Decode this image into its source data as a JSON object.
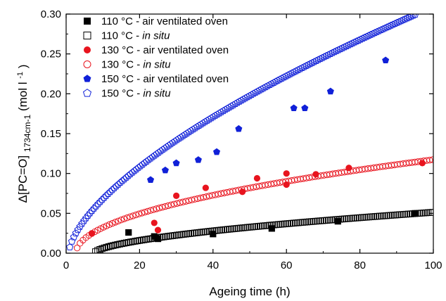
{
  "chart_data": {
    "type": "scatter",
    "title": "",
    "xlabel": "Ageing time (h)",
    "ylabel_parts": {
      "main": "Δ[PC=O]",
      "subscript": "1734cm-1",
      "unit": " (mol l",
      "unit_sup": "-1",
      "unit_end": ")"
    },
    "xlim": [
      0,
      100
    ],
    "ylim": [
      0,
      0.3
    ],
    "x_ticks": [
      0,
      20,
      40,
      60,
      80,
      100
    ],
    "y_ticks": [
      0.0,
      0.05,
      0.1,
      0.15,
      0.2,
      0.25,
      0.3
    ],
    "y_tick_labels": [
      "0.00",
      "0.05",
      "0.10",
      "0.15",
      "0.20",
      "0.25",
      "0.30"
    ],
    "legend_position": "top-left",
    "series": [
      {
        "name": "110 °C - air ventilated oven",
        "label_main": "110 °C - ",
        "label_tail": "air ventilated oven",
        "tail_italic": false,
        "marker": "square",
        "filled": true,
        "color": "#000000",
        "points": [
          [
            17,
            0.026
          ],
          [
            24,
            0.021
          ],
          [
            25,
            0.018
          ],
          [
            40,
            0.024
          ],
          [
            56,
            0.031
          ],
          [
            74,
            0.04
          ],
          [
            95,
            0.05
          ]
        ]
      },
      {
        "name": "110 °C - in situ",
        "label_main": "110 °C - ",
        "label_tail": "in situ",
        "tail_italic": true,
        "marker": "square",
        "filled": false,
        "color": "#000000",
        "curve": {
          "a": 0.00372,
          "b": 0.58,
          "start": 8,
          "step": 0.6
        }
      },
      {
        "name": "130 °C - air ventilated oven",
        "label_main": "130 °C - ",
        "label_tail": "air ventilated oven",
        "tail_italic": false,
        "marker": "circle",
        "filled": true,
        "color": "#e8141e",
        "points": [
          [
            7,
            0.025
          ],
          [
            24,
            0.038
          ],
          [
            25,
            0.029
          ],
          [
            30,
            0.072
          ],
          [
            38,
            0.082
          ],
          [
            48,
            0.077
          ],
          [
            52,
            0.094
          ],
          [
            60,
            0.1
          ],
          [
            60,
            0.086
          ],
          [
            68,
            0.099
          ],
          [
            77,
            0.107
          ],
          [
            97,
            0.113
          ]
        ]
      },
      {
        "name": "130 °C - in situ",
        "label_main": "130 °C - ",
        "label_tail": "in situ",
        "tail_italic": true,
        "marker": "circle",
        "filled": false,
        "color": "#e8141e",
        "curve": {
          "a": 0.0119,
          "b": 0.5,
          "start": 3,
          "step": 0.8
        }
      },
      {
        "name": "150 °C - air ventilated oven",
        "label_main": "150 °C - ",
        "label_tail": "air ventilated oven",
        "tail_italic": false,
        "marker": "pentagon",
        "filled": true,
        "color": "#1020d8",
        "points": [
          [
            23,
            0.092
          ],
          [
            27,
            0.104
          ],
          [
            30,
            0.113
          ],
          [
            36,
            0.117
          ],
          [
            41,
            0.127
          ],
          [
            47,
            0.156
          ],
          [
            62,
            0.182
          ],
          [
            65,
            0.182
          ],
          [
            72,
            0.203
          ],
          [
            87,
            0.242
          ]
        ]
      },
      {
        "name": "150 °C - in situ",
        "label_main": "150 °C - ",
        "label_tail": "in situ",
        "tail_italic": true,
        "marker": "pentagon",
        "filled": false,
        "color": "#1020d8",
        "curve": {
          "a": 0.0163,
          "b": 0.64,
          "start": 1,
          "step": 0.55
        }
      }
    ]
  }
}
